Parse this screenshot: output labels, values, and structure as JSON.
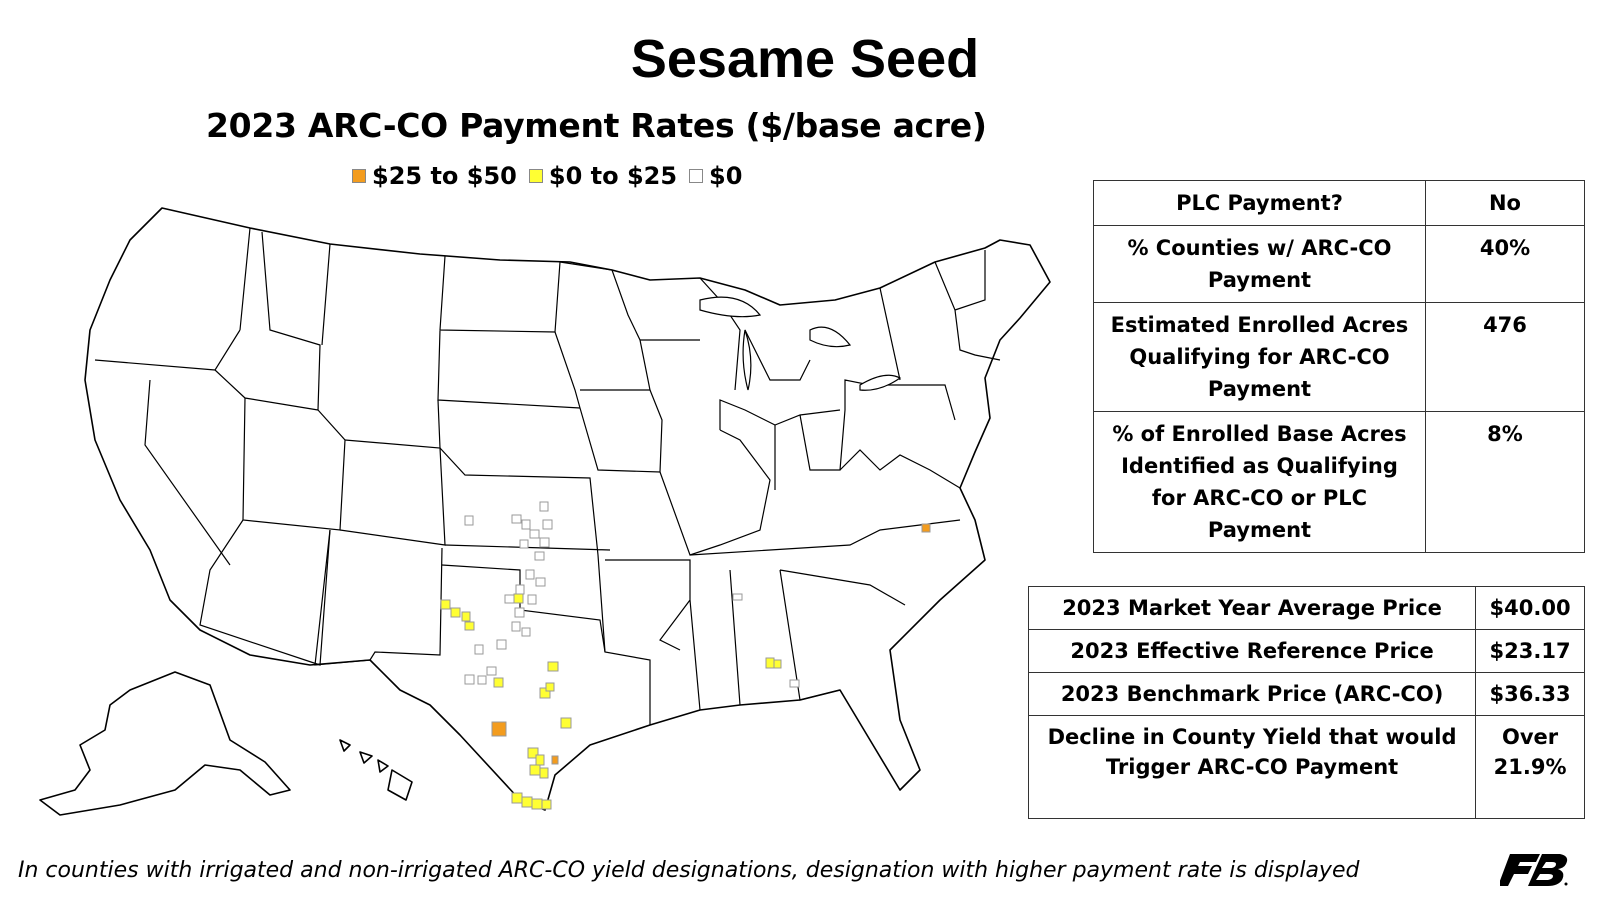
{
  "title": "Sesame Seed",
  "subtitle": "2023 ARC-CO Payment Rates ($/base acre)",
  "legend": [
    {
      "label": "$25 to $50",
      "color": "#f39c1e"
    },
    {
      "label": "$0 to $25",
      "color": "#ffff33"
    },
    {
      "label": "$0",
      "color": "#ffffff"
    }
  ],
  "plc_table": [
    {
      "label": "PLC Payment?",
      "value": "No"
    },
    {
      "label": "% Counties w/ ARC-CO Payment",
      "value": "40%"
    },
    {
      "label": "Estimated Enrolled Acres Qualifying for ARC-CO Payment",
      "value": "476"
    },
    {
      "label": "% of Enrolled Base Acres Identified as Qualifying for ARC-CO or PLC Payment",
      "value": "8%"
    }
  ],
  "price_table": [
    {
      "label": "2023 Market Year Average Price",
      "value": "$40.00"
    },
    {
      "label": "2023 Effective Reference Price",
      "value": "$23.17"
    },
    {
      "label": "2023 Benchmark Price (ARC-CO)",
      "value": "$36.33"
    },
    {
      "label": "Decline in County Yield that would Trigger ARC-CO Payment",
      "value": "Over 21.9%"
    }
  ],
  "footnote": "In counties with irrigated and non-irrigated ARC-CO yield designations, designation with higher payment rate is displayed",
  "logo": {
    "text": "FB"
  }
}
